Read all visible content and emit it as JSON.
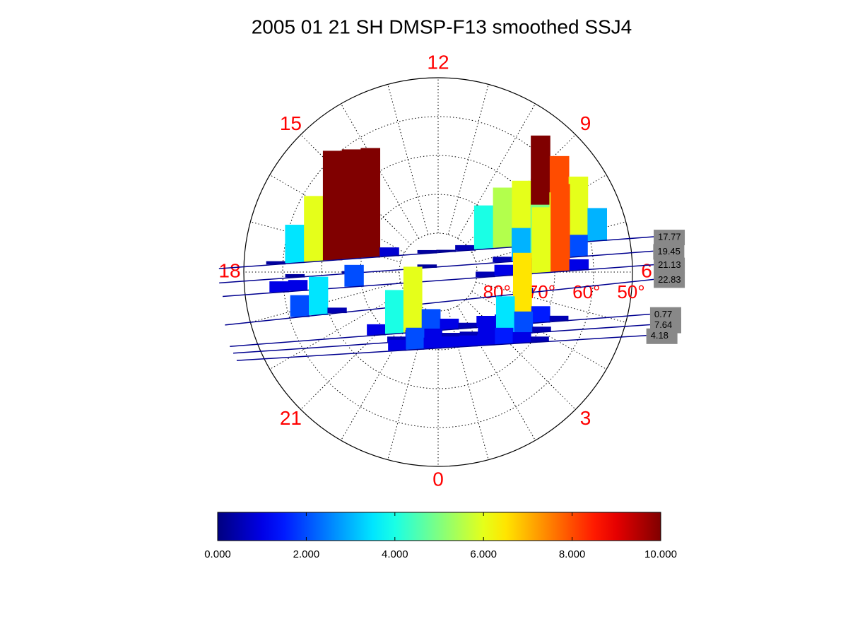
{
  "chart_data": {
    "type": "polar-waterfall",
    "title": "2005 01 21 SH DMSP-F13 smoothed SSJ4",
    "thetaticks": [
      12,
      15,
      9,
      18,
      6,
      21,
      3,
      0
    ],
    "rlim": [
      90,
      40
    ],
    "rticks": [
      {
        "value": 80,
        "label": "80°"
      },
      {
        "value": 70,
        "label": "70°"
      },
      {
        "value": 60,
        "label": "60°"
      },
      {
        "value": 50,
        "label": "50°"
      }
    ],
    "passes": [
      {
        "name": "17.77",
        "start": [
          17.94,
          33.6
        ],
        "end": [
          6.62,
          33.8
        ],
        "values": [
          0,
          0,
          0,
          0.3,
          3.5,
          6,
          10,
          10,
          10,
          0.8,
          0,
          0.3,
          0.2,
          0.5,
          4,
          5.5,
          6,
          10,
          8,
          6,
          3,
          0,
          0,
          0
        ]
      },
      {
        "name": "19.45",
        "start": [
          18.19,
          33.6
        ],
        "end": [
          6.37,
          34.4
        ],
        "values": [
          0,
          0,
          0,
          0,
          0.3,
          0,
          0,
          0.2,
          0,
          0,
          0,
          0.3,
          0,
          0,
          0,
          0.5,
          3,
          5,
          6,
          2,
          0,
          0,
          0,
          0
        ]
      },
      {
        "name": "21.13",
        "start": [
          18.43,
          34.2
        ],
        "end": [
          6.13,
          34.5
        ],
        "values": [
          0,
          0,
          0,
          1,
          1,
          0,
          0,
          2,
          0,
          0,
          0,
          0,
          0,
          0,
          0.5,
          1,
          1.5,
          6,
          8,
          1,
          0,
          0,
          0,
          0
        ]
      },
      {
        "name": "22.83",
        "start": [
          18.93,
          33.5
        ],
        "end": [
          5.87,
          34.5
        ],
        "values": [
          0,
          0,
          0,
          0,
          2,
          3.5,
          0.5,
          0,
          0,
          0,
          0,
          0,
          0,
          0,
          0,
          0,
          0.5,
          0,
          0,
          0,
          0,
          0,
          0,
          0
        ]
      },
      {
        "name": "0.77",
        "start": [
          19.31,
          33.1
        ],
        "end": [
          5.25,
          34.4
        ],
        "values": [
          0,
          0,
          0,
          0,
          0,
          0,
          0,
          0,
          1,
          4,
          6,
          2,
          1,
          0.5,
          1,
          1,
          6.5,
          1.5,
          0.5,
          0,
          0,
          0,
          0,
          0
        ]
      },
      {
        "name": "7.64",
        "start": [
          19.44,
          33.3
        ],
        "end": [
          5.07,
          33.8
        ],
        "values": [
          0,
          0,
          0,
          0,
          0,
          0,
          0,
          0,
          0,
          0.5,
          1,
          1,
          0.5,
          0.5,
          1,
          3.5,
          2,
          0.5,
          0,
          0,
          0,
          0,
          0,
          0
        ]
      },
      {
        "name": "4.18",
        "start": [
          19.58,
          33.4
        ],
        "end": [
          4.87,
          34.0
        ],
        "values": [
          0,
          0,
          0,
          0,
          0,
          0,
          0,
          0,
          0,
          1,
          2,
          1,
          1,
          1,
          1,
          1.5,
          1,
          0.5,
          0,
          0,
          0,
          0,
          0,
          0
        ]
      }
    ],
    "clim": [
      0,
      10
    ],
    "cticks": [
      {
        "value": 0,
        "label": "0.000"
      },
      {
        "value": 2,
        "label": "2.000"
      },
      {
        "value": 4,
        "label": "4.000"
      },
      {
        "value": 6,
        "label": "6.000"
      },
      {
        "value": 8,
        "label": "8.000"
      },
      {
        "value": 10,
        "label": "10.000"
      }
    ],
    "colormap": "jet",
    "line_color": "#00008f",
    "label_color": "#ff0000"
  }
}
